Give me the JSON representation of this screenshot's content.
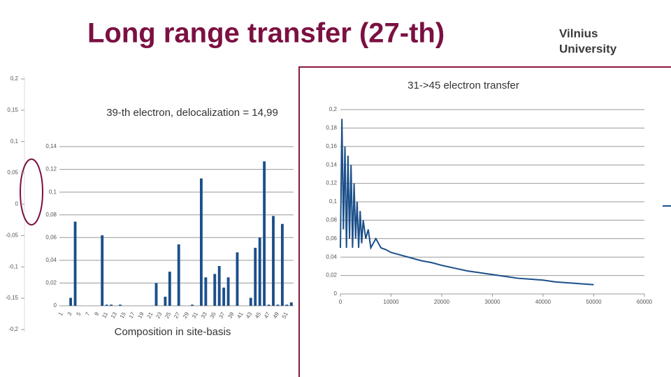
{
  "header": {
    "title": "Long range transfer (27-th)",
    "logo": [
      "Vilnius",
      "University"
    ]
  },
  "side_axis": {
    "ylim": [
      -0.2,
      0.2
    ],
    "yticks": [
      {
        "value": 0.2,
        "label": "0,2"
      },
      {
        "value": 0.15,
        "label": "0,15"
      },
      {
        "value": 0.1,
        "label": "0,1"
      },
      {
        "value": 0.05,
        "label": "0,05"
      },
      0,
      {
        "value": -0.05,
        "label": "-0,05"
      },
      {
        "value": -0.1,
        "label": "-0,1"
      },
      {
        "value": -0.15,
        "label": "-0,15"
      },
      {
        "value": -0.2,
        "label": "-0,2"
      }
    ]
  },
  "chart_data": [
    {
      "type": "bar",
      "title": "39-th electron, delocalization = 14,99",
      "x_label": "Composition in site-basis",
      "color": "#1b4f8a",
      "grid": true,
      "categories": [
        "1",
        null,
        "3",
        null,
        "5",
        null,
        "7",
        null,
        "9",
        null,
        "11",
        null,
        "13",
        null,
        "15",
        null,
        "17",
        null,
        "19",
        null,
        "21",
        null,
        "23",
        null,
        "25",
        null,
        "27",
        null,
        "29",
        null,
        "31",
        null,
        "33",
        null,
        "35",
        null,
        "37",
        null,
        "39",
        null,
        "41",
        null,
        "43",
        null,
        "45",
        null,
        "47",
        null,
        "49",
        null,
        "51",
        null
      ],
      "values": [
        0,
        0,
        0.007,
        0.074,
        0,
        0,
        0,
        0,
        0,
        0.062,
        0.001,
        0.001,
        0,
        0.001,
        0,
        0,
        0,
        0,
        0,
        0,
        0,
        0.02,
        0,
        0.008,
        0.03,
        0,
        0.054,
        0,
        0,
        0.001,
        0,
        0.112,
        0.025,
        0,
        0.028,
        0.035,
        0.016,
        0.025,
        0,
        0.047,
        0,
        0,
        0.007,
        0.051,
        0.06,
        0.127,
        0.001,
        0.079,
        0.001,
        0.072,
        0.001,
        0.003
      ],
      "ylim": [
        0,
        0.14
      ],
      "yticks": [
        0,
        {
          "value": 0.02,
          "label": "0,02"
        },
        {
          "value": 0.04,
          "label": "0,04"
        },
        {
          "value": 0.06,
          "label": "0,06"
        },
        {
          "value": 0.08,
          "label": "0,08"
        },
        {
          "value": 0.1,
          "label": "0,1"
        },
        {
          "value": 0.12,
          "label": "0,12"
        },
        {
          "value": 0.14,
          "label": "0,14"
        }
      ]
    },
    {
      "type": "line",
      "title": "31->45 electron transfer",
      "grid": true,
      "x": [
        0,
        300,
        600,
        900,
        1200,
        1500,
        1800,
        2100,
        2400,
        2700,
        3000,
        3300,
        3600,
        3900,
        4200,
        4500,
        5000,
        5500,
        6000,
        7000,
        8000,
        9000,
        10000,
        12000,
        14000,
        16000,
        18000,
        20000,
        22500,
        25000,
        27500,
        30000,
        32500,
        35000,
        37500,
        40000,
        42500,
        45000,
        47500,
        50000
      ],
      "series": [
        {
          "name": "31->45",
          "color": "#1b4f8a",
          "values": [
            0.05,
            0.19,
            0.07,
            0.16,
            0.05,
            0.15,
            0.06,
            0.14,
            0.05,
            0.12,
            0.06,
            0.1,
            0.05,
            0.09,
            0.055,
            0.08,
            0.06,
            0.07,
            0.05,
            0.06,
            0.05,
            0.048,
            0.045,
            0.042,
            0.039,
            0.036,
            0.034,
            0.031,
            0.028,
            0.025,
            0.023,
            0.021,
            0.019,
            0.017,
            0.016,
            0.015,
            0.013,
            0.012,
            0.011,
            0.01
          ]
        }
      ],
      "xlim": [
        0,
        60000
      ],
      "xticks": [
        0,
        10000,
        20000,
        30000,
        40000,
        50000,
        60000
      ],
      "ylim": [
        0,
        0.2
      ],
      "yticks": [
        0,
        {
          "value": 0.02,
          "label": "0,02"
        },
        {
          "value": 0.04,
          "label": "0,04"
        },
        {
          "value": 0.06,
          "label": "0,06"
        },
        {
          "value": 0.08,
          "label": "0,08"
        },
        {
          "value": 0.1,
          "label": "0,1"
        },
        {
          "value": 0.12,
          "label": "0,12"
        },
        {
          "value": 0.14,
          "label": "0,14"
        },
        {
          "value": 0.16,
          "label": "0,16"
        },
        {
          "value": 0.18,
          "label": "0,18"
        },
        {
          "value": 0.2,
          "label": "0,2"
        }
      ]
    }
  ]
}
